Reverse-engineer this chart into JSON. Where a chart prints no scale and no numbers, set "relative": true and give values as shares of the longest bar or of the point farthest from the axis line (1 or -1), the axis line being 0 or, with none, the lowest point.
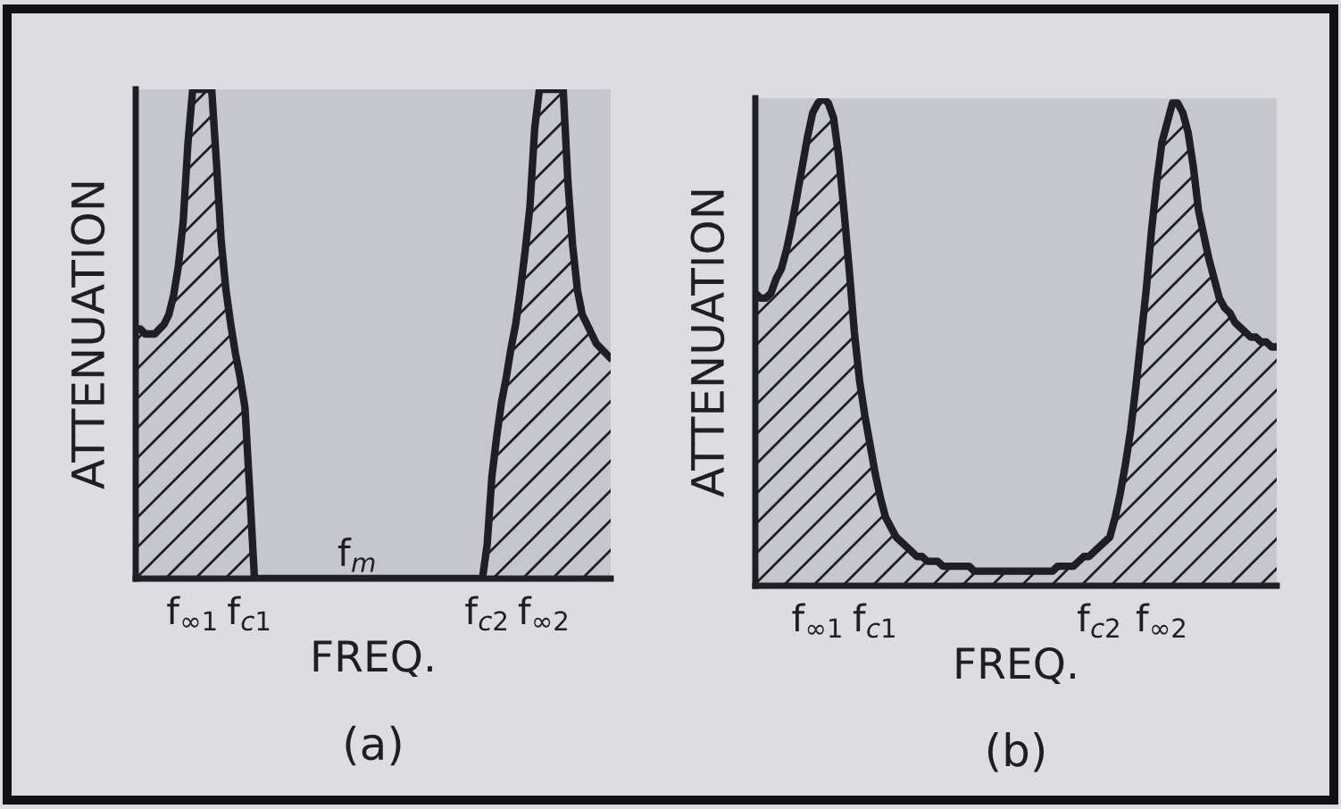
{
  "chart_data": [
    {
      "type": "area",
      "relative": true,
      "title": "(a)",
      "xlabel": "FREQ.",
      "ylabel": "ATTENUATION",
      "categories": [
        null,
        null,
        null,
        null,
        null,
        null,
        null,
        null,
        null,
        null,
        null,
        null,
        "f$_{∞1}$",
        null,
        null,
        null,
        null,
        null,
        null,
        null,
        null,
        null,
        null,
        null,
        "f$_{c1}$",
        null,
        null,
        null,
        null,
        null,
        null,
        null,
        null,
        null,
        null,
        null,
        null,
        null,
        null,
        null,
        null,
        null,
        null,
        null,
        null,
        null,
        null,
        null,
        null,
        null,
        null,
        null,
        null,
        null,
        null,
        null,
        null,
        null,
        null,
        null,
        null,
        null,
        null,
        null,
        null,
        null,
        null,
        null,
        null,
        null,
        null,
        null,
        null,
        null,
        "f$_{c2}$",
        null,
        null,
        null,
        null,
        null,
        null,
        null,
        null,
        null,
        null,
        null,
        "f$_{∞2}$",
        null,
        null,
        null,
        null,
        null,
        null,
        null,
        null,
        null,
        null,
        null,
        null,
        null,
        null
      ],
      "series": [
        {
          "color": "#1e1e24",
          "values": [
            0.51,
            0.51,
            0.5,
            0.5,
            0.5,
            0.51,
            0.52,
            0.54,
            0.58,
            0.64,
            0.73,
            0.89,
            1,
            1,
            1,
            1,
            1,
            0.85,
            0.69,
            0.59,
            0.52,
            0.46,
            0.41,
            0.35,
            0.18,
            0,
            0,
            0,
            0,
            0,
            0,
            0,
            0,
            0,
            0,
            0,
            0,
            0,
            0,
            0,
            0,
            0,
            0,
            0,
            0,
            0,
            0,
            0,
            0,
            0,
            0,
            0,
            0,
            0,
            0,
            0,
            0,
            0,
            0,
            0,
            0,
            0,
            0,
            0,
            0,
            0,
            0,
            0,
            0,
            0,
            0,
            0,
            0,
            0,
            0.07,
            0.21,
            0.29,
            0.36,
            0.41,
            0.47,
            0.52,
            0.59,
            0.67,
            0.76,
            0.92,
            1,
            1,
            1,
            1,
            1,
            1,
            0.81,
            0.68,
            0.59,
            0.54,
            0.52,
            0.5,
            0.48,
            0.47,
            0.46,
            0.45
          ]
        }
      ],
      "annotations": [
        "f$_{m}$"
      ]
    },
    {
      "type": "area",
      "relative": true,
      "title": "(b)",
      "xlabel": "FREQ.",
      "ylabel": "ATTENUATION",
      "categories": [
        null,
        null,
        null,
        null,
        null,
        null,
        null,
        null,
        null,
        null,
        null,
        null,
        "f$_{∞1}$",
        null,
        null,
        null,
        null,
        null,
        null,
        null,
        null,
        null,
        null,
        "f$_{c1}$",
        null,
        null,
        null,
        null,
        null,
        null,
        null,
        null,
        null,
        null,
        null,
        null,
        null,
        null,
        null,
        null,
        null,
        null,
        null,
        null,
        null,
        null,
        null,
        null,
        null,
        null,
        null,
        null,
        null,
        null,
        null,
        null,
        null,
        null,
        null,
        null,
        null,
        null,
        null,
        null,
        null,
        null,
        "f$_{c2}$",
        null,
        null,
        null,
        null,
        null,
        null,
        null,
        null,
        null,
        null,
        null,
        "f$_{∞2}$",
        null,
        null,
        null,
        null,
        null,
        null,
        null,
        null,
        null,
        null,
        null,
        null,
        null,
        null,
        null,
        null,
        null,
        null,
        null,
        null,
        null,
        null
      ],
      "series": [
        {
          "color": "#1e1e24",
          "values": [
            0.6,
            0.59,
            0.59,
            0.6,
            0.63,
            0.65,
            0.69,
            0.74,
            0.8,
            0.86,
            0.92,
            0.97,
            0.99,
            1,
            0.99,
            0.96,
            0.88,
            0.77,
            0.65,
            0.52,
            0.42,
            0.35,
            0.29,
            0.23,
            0.18,
            0.14,
            0.12,
            0.1,
            0.09,
            0.08,
            0.07,
            0.06,
            0.06,
            0.05,
            0.05,
            0.05,
            0.04,
            0.04,
            0.04,
            0.04,
            0.04,
            0.04,
            0.03,
            0.03,
            0.03,
            0.03,
            0.03,
            0.03,
            0.03,
            0.03,
            0.03,
            0.03,
            0.03,
            0.03,
            0.03,
            0.03,
            0.03,
            0.03,
            0.04,
            0.04,
            0.04,
            0.04,
            0.05,
            0.06,
            0.06,
            0.07,
            0.08,
            0.09,
            0.1,
            0.14,
            0.19,
            0.25,
            0.32,
            0.41,
            0.51,
            0.61,
            0.73,
            0.83,
            0.91,
            0.95,
            0.99,
            0.99,
            0.97,
            0.93,
            0.86,
            0.77,
            0.72,
            0.67,
            0.63,
            0.59,
            0.57,
            0.56,
            0.54,
            0.53,
            0.52,
            0.51,
            0.51,
            0.5,
            0.5,
            0.49,
            0.49
          ]
        }
      ]
    }
  ]
}
